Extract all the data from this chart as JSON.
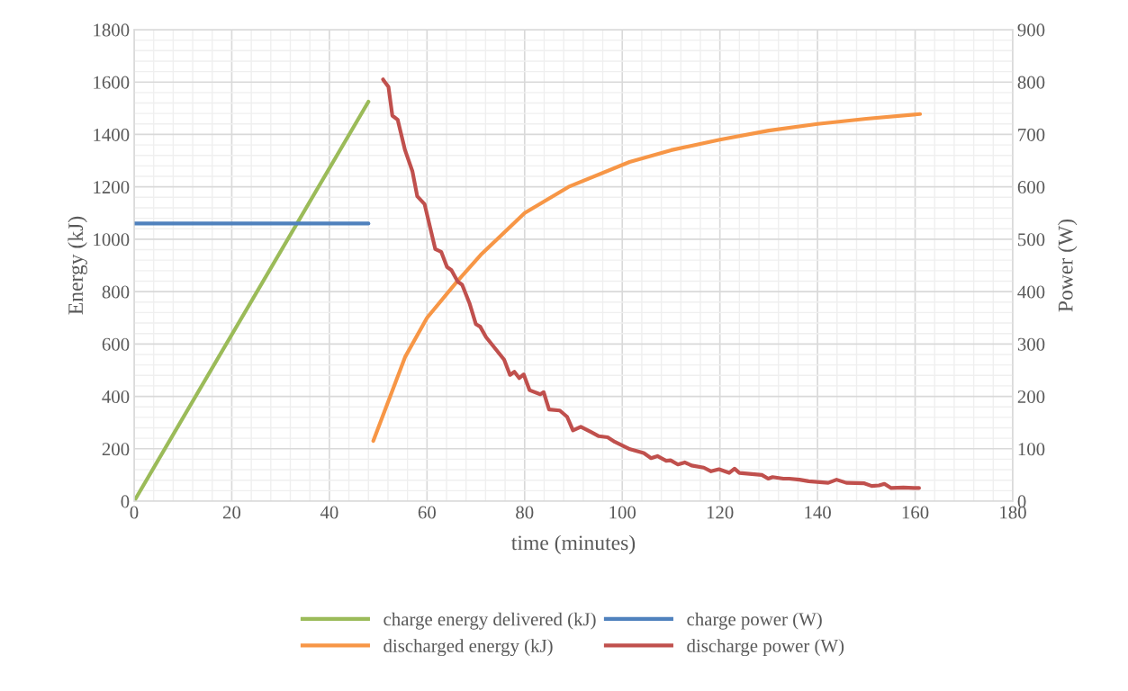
{
  "chart_data": {
    "type": "line",
    "xlabel": "time (minutes)",
    "ylabel": "Energy (kJ)",
    "y2label": "Power (W)",
    "xlim": [
      0,
      180
    ],
    "xticks": [
      0,
      20,
      40,
      60,
      80,
      100,
      120,
      140,
      160,
      180
    ],
    "ylim": [
      0,
      1800
    ],
    "yticks": [
      0,
      200,
      400,
      600,
      800,
      1000,
      1200,
      1400,
      1600,
      1800
    ],
    "y2lim": [
      0,
      900
    ],
    "y2ticks": [
      0,
      100,
      200,
      300,
      400,
      500,
      600,
      700,
      800,
      900
    ],
    "grid": true,
    "legend": "bottom",
    "marker": "none",
    "line_style": "solid",
    "series": [
      {
        "name": "charge energy delivered (kJ)",
        "color": "#9bbb59",
        "x": [
          0,
          48
        ],
        "values": [
          0,
          1525
        ]
      },
      {
        "name": "discharged energy (kJ)",
        "color": "#f79646",
        "x": [
          49,
          55.5,
          60,
          66,
          71,
          80,
          89,
          101.5,
          110,
          120,
          130,
          140,
          150,
          161
        ],
        "values": [
          230,
          550,
          700,
          835,
          940,
          1100,
          1200,
          1295,
          1340,
          1380,
          1415,
          1440,
          1460,
          1478
        ]
      },
      {
        "name": "charge power (W)",
        "color": "#4f81bd",
        "axis": "y2",
        "x": [
          0,
          48
        ],
        "values": [
          530,
          530
        ]
      },
      {
        "name": "discharge power (W)",
        "color": "#c0504d",
        "axis": "y2",
        "x": [
          51,
          51.2,
          52.1,
          52.9,
          54,
          55.5,
          57,
          58,
          59.5,
          61.7,
          62.9,
          64.1,
          65,
          66.3,
          67.2,
          68.7,
          70,
          70.9,
          72.1,
          75.8,
          77,
          77.9,
          78.9,
          79.8,
          81,
          83.2,
          83.9,
          85,
          87.2,
          88.7,
          89.9,
          91.5,
          93.6,
          95.2,
          97,
          98.5,
          101.6,
          104.4,
          105.9,
          107.2,
          109,
          109.9,
          111.4,
          112.8,
          114.2,
          116.7,
          118.2,
          119.8,
          121.9,
          123,
          124,
          128.6,
          129.9,
          130.8,
          133,
          134.2,
          136.3,
          138.2,
          142.2,
          143.9,
          145.9,
          149.6,
          151.1,
          152.6,
          153.7,
          155.1,
          157.6,
          159.7,
          160.8
        ],
        "values": [
          805,
          802,
          791,
          736,
          728,
          670,
          630,
          582,
          567,
          481,
          476,
          447,
          441,
          419,
          413,
          378,
          338,
          333,
          313,
          270,
          241,
          247,
          235,
          242,
          212,
          204,
          208,
          175,
          173,
          161,
          135,
          142,
          132,
          124,
          122,
          113,
          99,
          92,
          82,
          86,
          77,
          78,
          70,
          74,
          68,
          64,
          57,
          61,
          54,
          62,
          54,
          50,
          43,
          46,
          43,
          43,
          41,
          38,
          35,
          41,
          35,
          34,
          29,
          30,
          33,
          25,
          26,
          25,
          25
        ]
      }
    ]
  }
}
